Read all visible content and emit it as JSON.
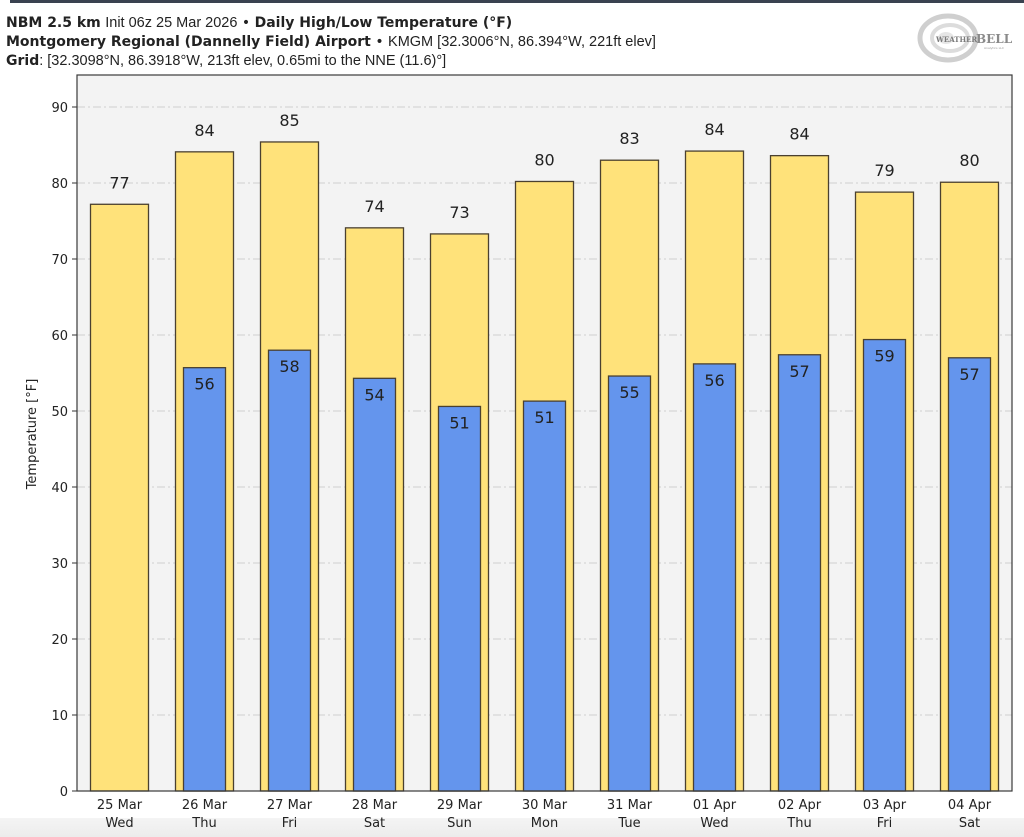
{
  "header": {
    "line1": {
      "model": "NBM 2.5 km",
      "init": "Init 06z 25 Mar 2026",
      "separator": "•",
      "product": "Daily High/Low Temperature (°F)"
    },
    "line2": {
      "station": "Montgomery Regional (Dannelly Field) Airport",
      "separator": "•",
      "details": "KMGM [32.3006°N, 86.394°W, 221ft elev]"
    },
    "line3": {
      "label": "Grid",
      "details": ": [32.3098°N, 86.3918°W, 213ft elev, 0.65mi to the NNE (11.6)°]"
    }
  },
  "logo": {
    "text_main": "WEATHERBELL",
    "text_sub": "Analytics LLC"
  },
  "colors": {
    "high_bar": "#FFE27A",
    "low_bar": "#6495ED",
    "bar_edge": "#4a4030",
    "plot_bg": "#F3F3F3",
    "grid": "#cfcfcf"
  },
  "chart_data": {
    "type": "bar",
    "title": "Daily High/Low Temperature (°F)",
    "xlabel": "",
    "ylabel": "Temperature [°F]",
    "ylim": [
      0,
      94
    ],
    "yticks": [
      0,
      10,
      20,
      30,
      40,
      50,
      60,
      70,
      80,
      90
    ],
    "grid": true,
    "categories": [
      {
        "date": "25 Mar",
        "day": "Wed"
      },
      {
        "date": "26 Mar",
        "day": "Thu"
      },
      {
        "date": "27 Mar",
        "day": "Fri"
      },
      {
        "date": "28 Mar",
        "day": "Sat"
      },
      {
        "date": "29 Mar",
        "day": "Sun"
      },
      {
        "date": "30 Mar",
        "day": "Mon"
      },
      {
        "date": "31 Mar",
        "day": "Tue"
      },
      {
        "date": "01 Apr",
        "day": "Wed"
      },
      {
        "date": "02 Apr",
        "day": "Thu"
      },
      {
        "date": "03 Apr",
        "day": "Fri"
      },
      {
        "date": "04 Apr",
        "day": "Sat"
      }
    ],
    "series": [
      {
        "name": "High",
        "values": [
          77.2,
          84.1,
          85.4,
          74.1,
          73.3,
          80.2,
          83.0,
          84.2,
          83.6,
          78.8,
          80.1
        ],
        "labels": [
          "77",
          "84",
          "85",
          "74",
          "73",
          "80",
          "83",
          "84",
          "84",
          "79",
          "80"
        ]
      },
      {
        "name": "Low",
        "values": [
          null,
          55.7,
          58.0,
          54.3,
          50.6,
          51.3,
          54.6,
          56.2,
          57.4,
          59.4,
          57.0
        ],
        "labels": [
          "",
          "56",
          "58",
          "54",
          "51",
          "51",
          "55",
          "56",
          "57",
          "59",
          "57"
        ]
      }
    ]
  }
}
